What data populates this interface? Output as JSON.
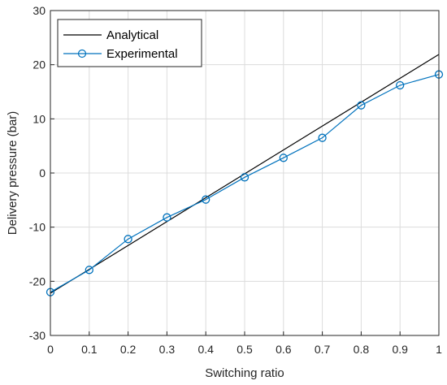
{
  "chart_data": {
    "type": "line",
    "xlabel": "Switching ratio",
    "ylabel": "Delivery pressure (bar)",
    "xlim": [
      0,
      1
    ],
    "ylim": [
      -30,
      30
    ],
    "xticks": [
      0,
      0.1,
      0.2,
      0.3,
      0.4,
      0.5,
      0.6,
      0.7,
      0.8,
      0.9,
      1
    ],
    "yticks": [
      -30,
      -20,
      -10,
      0,
      10,
      20,
      30
    ],
    "xtick_labels": [
      "0",
      "0.1",
      "0.2",
      "0.3",
      "0.4",
      "0.5",
      "0.6",
      "0.7",
      "0.8",
      "0.9",
      "1"
    ],
    "ytick_labels": [
      "-30",
      "-20",
      "-10",
      "0",
      "10",
      "20",
      "30"
    ],
    "grid": true,
    "legend_position": "top-left",
    "series": [
      {
        "name": "Analytical",
        "color": "#000000",
        "marker": "none",
        "x": [
          0,
          1
        ],
        "y": [
          -22.2,
          21.9
        ]
      },
      {
        "name": "Experimental",
        "color": "#0072bd",
        "marker": "circle",
        "x": [
          0,
          0.1,
          0.2,
          0.3,
          0.4,
          0.5,
          0.6,
          0.7,
          0.8,
          0.9,
          1
        ],
        "y": [
          -22.0,
          -17.9,
          -12.2,
          -8.2,
          -4.9,
          -0.8,
          2.8,
          6.5,
          12.5,
          16.2,
          18.2
        ]
      }
    ]
  }
}
